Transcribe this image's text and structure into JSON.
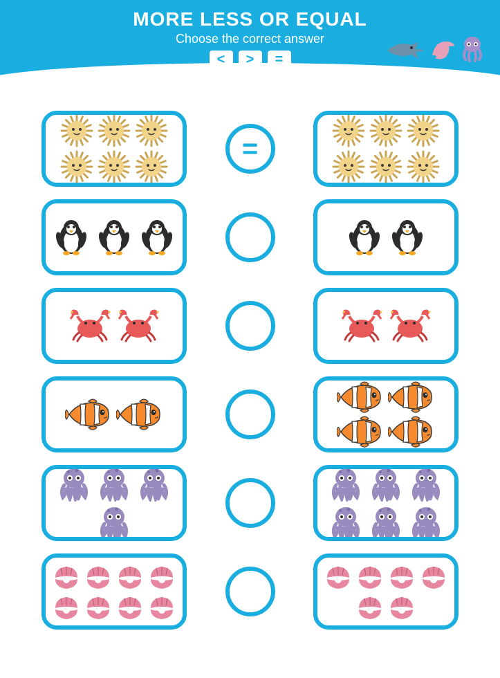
{
  "header": {
    "title": "MORE LESS OR EQUAL",
    "subtitle": "Choose the correct answer",
    "symbols": [
      "<",
      ">",
      "="
    ]
  },
  "theme": {
    "primary": "#1aaee0",
    "card_border_radius": 22,
    "card_border_width": 6,
    "circle_size": 72
  },
  "rows": [
    {
      "icon": "urchin",
      "left_count": 6,
      "right_count": 6,
      "answer": "="
    },
    {
      "icon": "penguin",
      "left_count": 3,
      "right_count": 2,
      "answer": ""
    },
    {
      "icon": "crab",
      "left_count": 2,
      "right_count": 2,
      "answer": ""
    },
    {
      "icon": "clownfish",
      "left_count": 2,
      "right_count": 4,
      "answer": ""
    },
    {
      "icon": "octopus",
      "left_count": 4,
      "right_count": 6,
      "answer": ""
    },
    {
      "icon": "shell",
      "left_count": 8,
      "right_count": 6,
      "answer": ""
    }
  ],
  "icons": {
    "urchin": {
      "color": "#f2d38a",
      "accent": "#c9a556",
      "size": 48
    },
    "penguin": {
      "body": "#2c2c2c",
      "belly": "#ffffff",
      "beak": "#f5a623",
      "size": 56
    },
    "crab": {
      "color": "#e85a5a",
      "accent": "#c23b3b",
      "star": "#f7c948",
      "size": 64
    },
    "clownfish": {
      "body": "#f58a2e",
      "stripe": "#ffffff",
      "outline": "#3a3a3a",
      "size": 68
    },
    "octopus": {
      "color": "#9a8bbf",
      "accent": "#6e5a9e",
      "size": 52
    },
    "shell": {
      "color": "#e6879f",
      "accent": "#c45d7a",
      "pearl": "#ffffff",
      "size": 40
    }
  },
  "decor": {
    "shark": "#6d8fa8",
    "dolphin": "#e8a0b8",
    "octopus": "#a68fc9"
  }
}
